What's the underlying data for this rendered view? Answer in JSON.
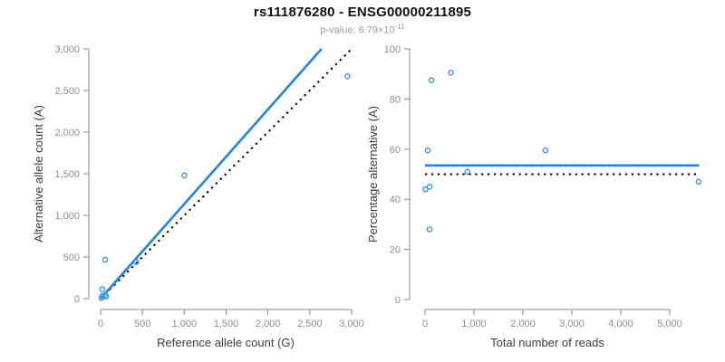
{
  "header": {
    "title": "rs111876280 - ENSG00000211895",
    "subtitle_prefix": "p-value: 6.79×10",
    "subtitle_exponent": "-11"
  },
  "colors": {
    "accent_blue": "#2182E2",
    "marker_blue": "#3C96E8",
    "identity_black": "#000000",
    "axis_gray": "#8a8a8a",
    "tick_label_gray": "#8d8d8d",
    "axis_title_color": "#3c3c3c",
    "title_color": "#111111",
    "subtitle_color": "#9b9b9b"
  },
  "chart_data": [
    {
      "type": "scatter",
      "name": "allele-count-scatter",
      "title": "",
      "xlabel": "Reference allele count (G)",
      "ylabel": "Alternative allele count (A)",
      "xlim": [
        0,
        3000
      ],
      "ylim": [
        0,
        3000
      ],
      "xticks": [
        0,
        500,
        1000,
        1500,
        2000,
        2500,
        3000
      ],
      "yticks": [
        0,
        500,
        1000,
        1500,
        2000,
        2500,
        3000
      ],
      "grid": false,
      "legend": false,
      "points": [
        [
          10,
          8
        ],
        [
          22,
          33
        ],
        [
          51,
          41
        ],
        [
          66,
          26
        ],
        [
          20,
          113
        ],
        [
          55,
          467
        ],
        [
          425,
          440
        ],
        [
          1000,
          1480
        ],
        [
          2950,
          2670
        ]
      ],
      "fit_line": {
        "style": "solid",
        "color_key": "accent_blue",
        "from": [
          0,
          0
        ],
        "to": [
          2640,
          3000
        ]
      },
      "identity_line": {
        "style": "dotted",
        "color_key": "identity_black",
        "from": [
          0,
          0
        ],
        "to": [
          3000,
          3000
        ]
      }
    },
    {
      "type": "scatter",
      "name": "percentage-alternative-scatter",
      "title": "",
      "xlabel": "Total number of reads",
      "ylabel": "Percentage alternative (A)",
      "xlim": [
        0,
        5600
      ],
      "ylim": [
        0,
        100
      ],
      "xticks": [
        0,
        1000,
        2000,
        3000,
        4000,
        5000
      ],
      "yticks": [
        0,
        20,
        40,
        60,
        80,
        100
      ],
      "grid": false,
      "legend": false,
      "points": [
        [
          10,
          44
        ],
        [
          92,
          45
        ],
        [
          92,
          28
        ],
        [
          55,
          59.5
        ],
        [
          130,
          87.5
        ],
        [
          530,
          90.5
        ],
        [
          865,
          51
        ],
        [
          2460,
          59.5
        ],
        [
          5590,
          47
        ]
      ],
      "fit_line": {
        "style": "solid",
        "color_key": "accent_blue",
        "value": 53.5
      },
      "identity_line": {
        "style": "dotted",
        "color_key": "identity_black",
        "value": 50
      }
    }
  ]
}
